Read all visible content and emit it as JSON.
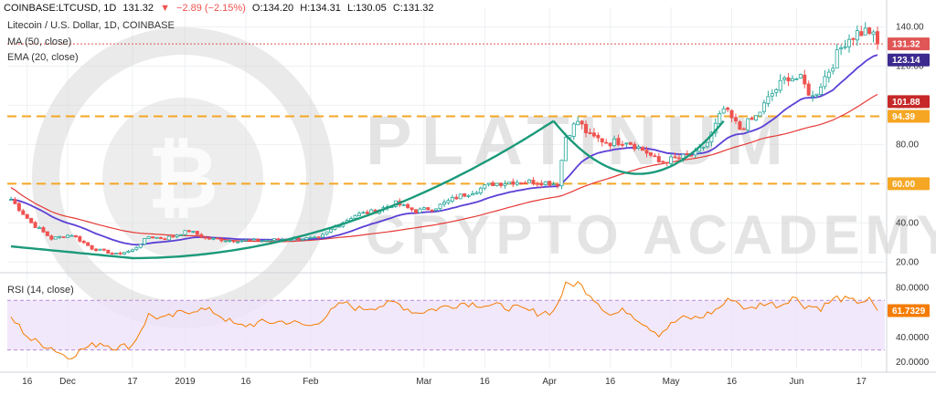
{
  "header": {
    "symbol": "COINBASE:LTCUSD, 1D",
    "last": "131.32",
    "change": "−2.89 (−2.15%)",
    "open": "O:134.20",
    "high": "H:134.31",
    "low": "L:130.05",
    "close": "C:131.32"
  },
  "legend": {
    "title": "Litecoin / U.S. Dollar, 1D, COINBASE",
    "ma": "MA (50, close)",
    "ema": "EMA (20, close)",
    "rsi": "RSI (14, close)"
  },
  "watermark": {
    "line1": "PLATINUM",
    "line2": "CRYPTO ACADEMY"
  },
  "colors": {
    "up": "#26a69a",
    "down": "#ef5350",
    "ema": "#5c3fd6",
    "ma": "#e53935",
    "rsi": "#f57c00",
    "curve": "#1b9a7a",
    "level": "#f5a623",
    "price_tag": "#e05555",
    "ema_tag": "#3d2a8f",
    "ma_tag": "#c62828",
    "level_tag": "#f5a623",
    "rsi_tag": "#f57c00"
  },
  "chart_data": {
    "type": "candlestick",
    "price_axis": {
      "ticks": [
        20,
        40,
        60,
        80,
        100,
        120,
        140
      ],
      "labels": [
        "20.00",
        "40.00",
        "60.00",
        "80.00",
        "100.00",
        "120.00",
        "140.00"
      ],
      "range": [
        15,
        150
      ]
    },
    "rsi_axis": {
      "ticks": [
        20,
        40,
        60,
        80
      ],
      "labels": [
        "20.0000",
        "40.0000",
        "60.0000",
        "80.0000"
      ],
      "band": [
        30,
        70
      ],
      "range": [
        15,
        90
      ]
    },
    "x_labels": [
      {
        "i": 4,
        "text": "16"
      },
      {
        "i": 14,
        "text": "Dec"
      },
      {
        "i": 30,
        "text": "17"
      },
      {
        "i": 43,
        "text": "2019"
      },
      {
        "i": 58,
        "text": "16"
      },
      {
        "i": 74,
        "text": "Feb"
      },
      {
        "i": 102,
        "text": "Mar"
      },
      {
        "i": 117,
        "text": "16"
      },
      {
        "i": 133,
        "text": "Apr"
      },
      {
        "i": 148,
        "text": "16"
      },
      {
        "i": 163,
        "text": "May"
      },
      {
        "i": 178,
        "text": "16"
      },
      {
        "i": 194,
        "text": "Jun"
      },
      {
        "i": 210,
        "text": "17"
      }
    ],
    "levels": [
      {
        "value": 94.39,
        "label": "94.39"
      },
      {
        "value": 60.0,
        "label": "60.00"
      }
    ],
    "last_price": {
      "value": 131.32,
      "label": "131.32"
    },
    "ema_last": {
      "value": 123.14,
      "label": "123.14"
    },
    "ma_last": {
      "value": 101.88,
      "label": "101.88"
    },
    "rsi_last": {
      "value": 61.7329,
      "label": "61.7329"
    },
    "close_anchors": [
      [
        0,
        52
      ],
      [
        5,
        40
      ],
      [
        10,
        32
      ],
      [
        15,
        34
      ],
      [
        20,
        27
      ],
      [
        26,
        24
      ],
      [
        30,
        26
      ],
      [
        34,
        33
      ],
      [
        38,
        32
      ],
      [
        44,
        36
      ],
      [
        48,
        32
      ],
      [
        55,
        31
      ],
      [
        62,
        31
      ],
      [
        70,
        32
      ],
      [
        76,
        32
      ],
      [
        80,
        38
      ],
      [
        85,
        44
      ],
      [
        90,
        46
      ],
      [
        95,
        50
      ],
      [
        100,
        46
      ],
      [
        105,
        48
      ],
      [
        110,
        53
      ],
      [
        114,
        56
      ],
      [
        119,
        60
      ],
      [
        124,
        61
      ],
      [
        130,
        61
      ],
      [
        135,
        60
      ],
      [
        137,
        84
      ],
      [
        140,
        92
      ],
      [
        143,
        84
      ],
      [
        148,
        81
      ],
      [
        152,
        82
      ],
      [
        157,
        76
      ],
      [
        160,
        71
      ],
      [
        165,
        73
      ],
      [
        169,
        75
      ],
      [
        172,
        81
      ],
      [
        176,
        98
      ],
      [
        180,
        88
      ],
      [
        184,
        94
      ],
      [
        188,
        106
      ],
      [
        192,
        115
      ],
      [
        195,
        113
      ],
      [
        198,
        104
      ],
      [
        202,
        118
      ],
      [
        206,
        133
      ],
      [
        209,
        137
      ],
      [
        212,
        138
      ],
      [
        214,
        131.32
      ]
    ],
    "rsi_anchors": [
      [
        0,
        56
      ],
      [
        5,
        38
      ],
      [
        10,
        32
      ],
      [
        14,
        24
      ],
      [
        18,
        31
      ],
      [
        22,
        36
      ],
      [
        26,
        32
      ],
      [
        30,
        34
      ],
      [
        34,
        58
      ],
      [
        38,
        55
      ],
      [
        42,
        60
      ],
      [
        46,
        63
      ],
      [
        50,
        61
      ],
      [
        56,
        49
      ],
      [
        62,
        52
      ],
      [
        68,
        53
      ],
      [
        74,
        49
      ],
      [
        78,
        58
      ],
      [
        82,
        68
      ],
      [
        86,
        63
      ],
      [
        90,
        65
      ],
      [
        95,
        68
      ],
      [
        100,
        60
      ],
      [
        106,
        64
      ],
      [
        112,
        68
      ],
      [
        118,
        66
      ],
      [
        124,
        64
      ],
      [
        130,
        60
      ],
      [
        134,
        61
      ],
      [
        137,
        82
      ],
      [
        140,
        84
      ],
      [
        143,
        75
      ],
      [
        148,
        58
      ],
      [
        152,
        62
      ],
      [
        157,
        50
      ],
      [
        160,
        43
      ],
      [
        165,
        55
      ],
      [
        170,
        56
      ],
      [
        174,
        62
      ],
      [
        178,
        72
      ],
      [
        182,
        62
      ],
      [
        186,
        68
      ],
      [
        190,
        66
      ],
      [
        193,
        73
      ],
      [
        196,
        66
      ],
      [
        200,
        64
      ],
      [
        204,
        72
      ],
      [
        208,
        69
      ],
      [
        212,
        70
      ],
      [
        214,
        61.73
      ]
    ],
    "n_bars": 215
  }
}
